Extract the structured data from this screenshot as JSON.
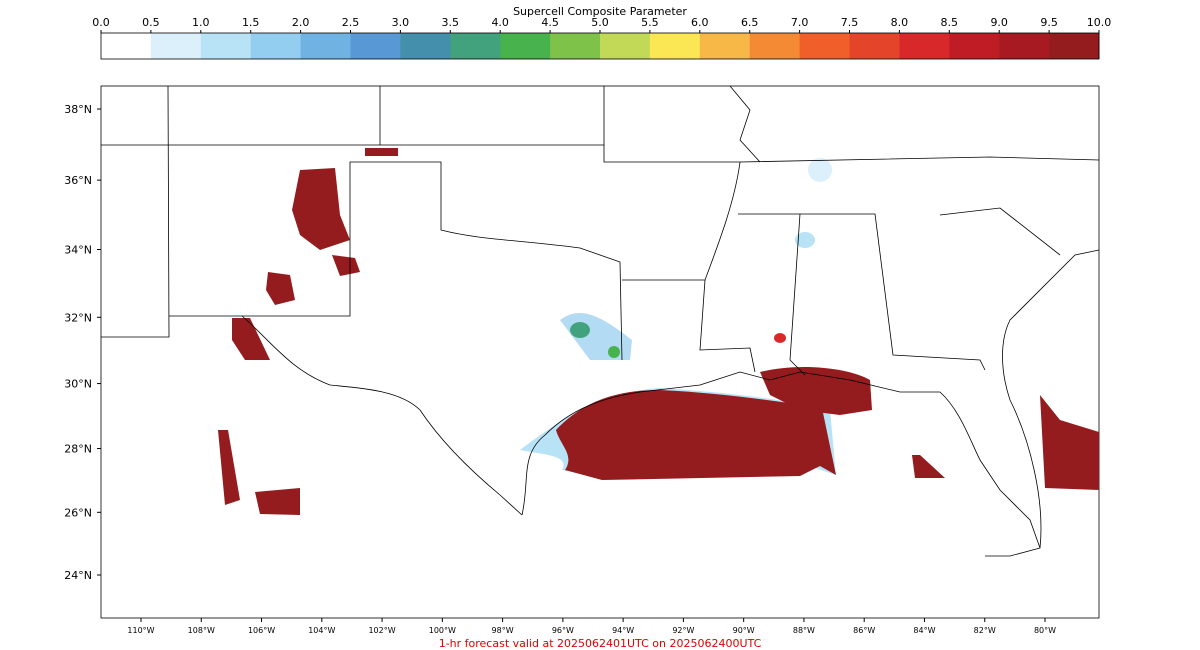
{
  "colorbar": {
    "title": "Supercell Composite Parameter",
    "ticks": [
      {
        "value": 0,
        "label": "0.0"
      },
      {
        "value": 0.5,
        "label": "0.5"
      },
      {
        "value": 1,
        "label": "1.0"
      },
      {
        "value": 1.5,
        "label": "1.5"
      },
      {
        "value": 2,
        "label": "2.0"
      },
      {
        "value": 2.5,
        "label": "2.5"
      },
      {
        "value": 3,
        "label": "3.0"
      },
      {
        "value": 3.5,
        "label": "3.5"
      },
      {
        "value": 4,
        "label": "4.0"
      },
      {
        "value": 4.5,
        "label": "4.5"
      },
      {
        "value": 5,
        "label": "5.0"
      },
      {
        "value": 5.5,
        "label": "5.5"
      },
      {
        "value": 6,
        "label": "6.0"
      },
      {
        "value": 6.5,
        "label": "6.5"
      },
      {
        "value": 7,
        "label": "7.0"
      },
      {
        "value": 7.5,
        "label": "7.5"
      },
      {
        "value": 8,
        "label": "8.0"
      },
      {
        "value": 8.5,
        "label": "8.5"
      },
      {
        "value": 9,
        "label": "9.0"
      },
      {
        "value": 9.5,
        "label": "9.5"
      },
      {
        "value": 10,
        "label": "10.0"
      }
    ],
    "colors": [
      "#ffffff",
      "#dcf0fb",
      "#b8e2f6",
      "#93cdf0",
      "#70b2e2",
      "#5898d4",
      "#4490ac",
      "#42a27d",
      "#48b24c",
      "#7fc24a",
      "#c2d957",
      "#fbe654",
      "#f8b848",
      "#f58a34",
      "#f05f2a",
      "#e4452a",
      "#d8282a",
      "#c01c25",
      "#a81a22",
      "#941c1e"
    ]
  },
  "map": {
    "lat_labels": [
      {
        "value": 38,
        "label": "38°N"
      },
      {
        "value": 36,
        "label": "36°N"
      },
      {
        "value": 34,
        "label": "34°N"
      },
      {
        "value": 32,
        "label": "32°N"
      },
      {
        "value": 30,
        "label": "30°N"
      },
      {
        "value": 28,
        "label": "28°N"
      },
      {
        "value": 26,
        "label": "26°N"
      },
      {
        "value": 24,
        "label": "24°N"
      }
    ],
    "lon_labels": [
      {
        "value": -110,
        "label": "110°W"
      },
      {
        "value": -108,
        "label": "108°W"
      },
      {
        "value": -106,
        "label": "106°W"
      },
      {
        "value": -104,
        "label": "104°W"
      },
      {
        "value": -102,
        "label": "102°W"
      },
      {
        "value": -100,
        "label": "100°W"
      },
      {
        "value": -98,
        "label": "98°W"
      },
      {
        "value": -96,
        "label": "96°W"
      },
      {
        "value": -94,
        "label": "94°W"
      },
      {
        "value": -92,
        "label": "92°W"
      },
      {
        "value": -90,
        "label": "90°W"
      },
      {
        "value": -88,
        "label": "88°W"
      },
      {
        "value": -86,
        "label": "86°W"
      },
      {
        "value": -84,
        "label": "84°W"
      },
      {
        "value": -82,
        "label": "82°W"
      },
      {
        "value": -80,
        "label": "80°W"
      }
    ]
  },
  "footer": "1-hr forecast valid at 2025062401UTC on 2025062400UTC"
}
